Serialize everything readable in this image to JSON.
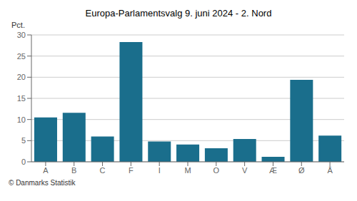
{
  "chart_data": {
    "type": "bar",
    "title": "Europa-Parlamentsvalg 9. juni 2024 - 2. Nord",
    "categories": [
      "A",
      "B",
      "C",
      "F",
      "I",
      "M",
      "O",
      "V",
      "Æ",
      "Ø",
      "Å"
    ],
    "values": [
      10.5,
      11.6,
      6.0,
      28.3,
      4.8,
      4.1,
      3.2,
      5.4,
      1.2,
      19.4,
      6.2
    ],
    "color": "#1a6e8c",
    "ylabel": "Pct.",
    "ylim": [
      0,
      30
    ],
    "yticks": [
      0,
      5,
      10,
      15,
      20,
      25,
      30
    ],
    "grid": true,
    "annotations": [
      "© Danmarks Statistik"
    ]
  }
}
